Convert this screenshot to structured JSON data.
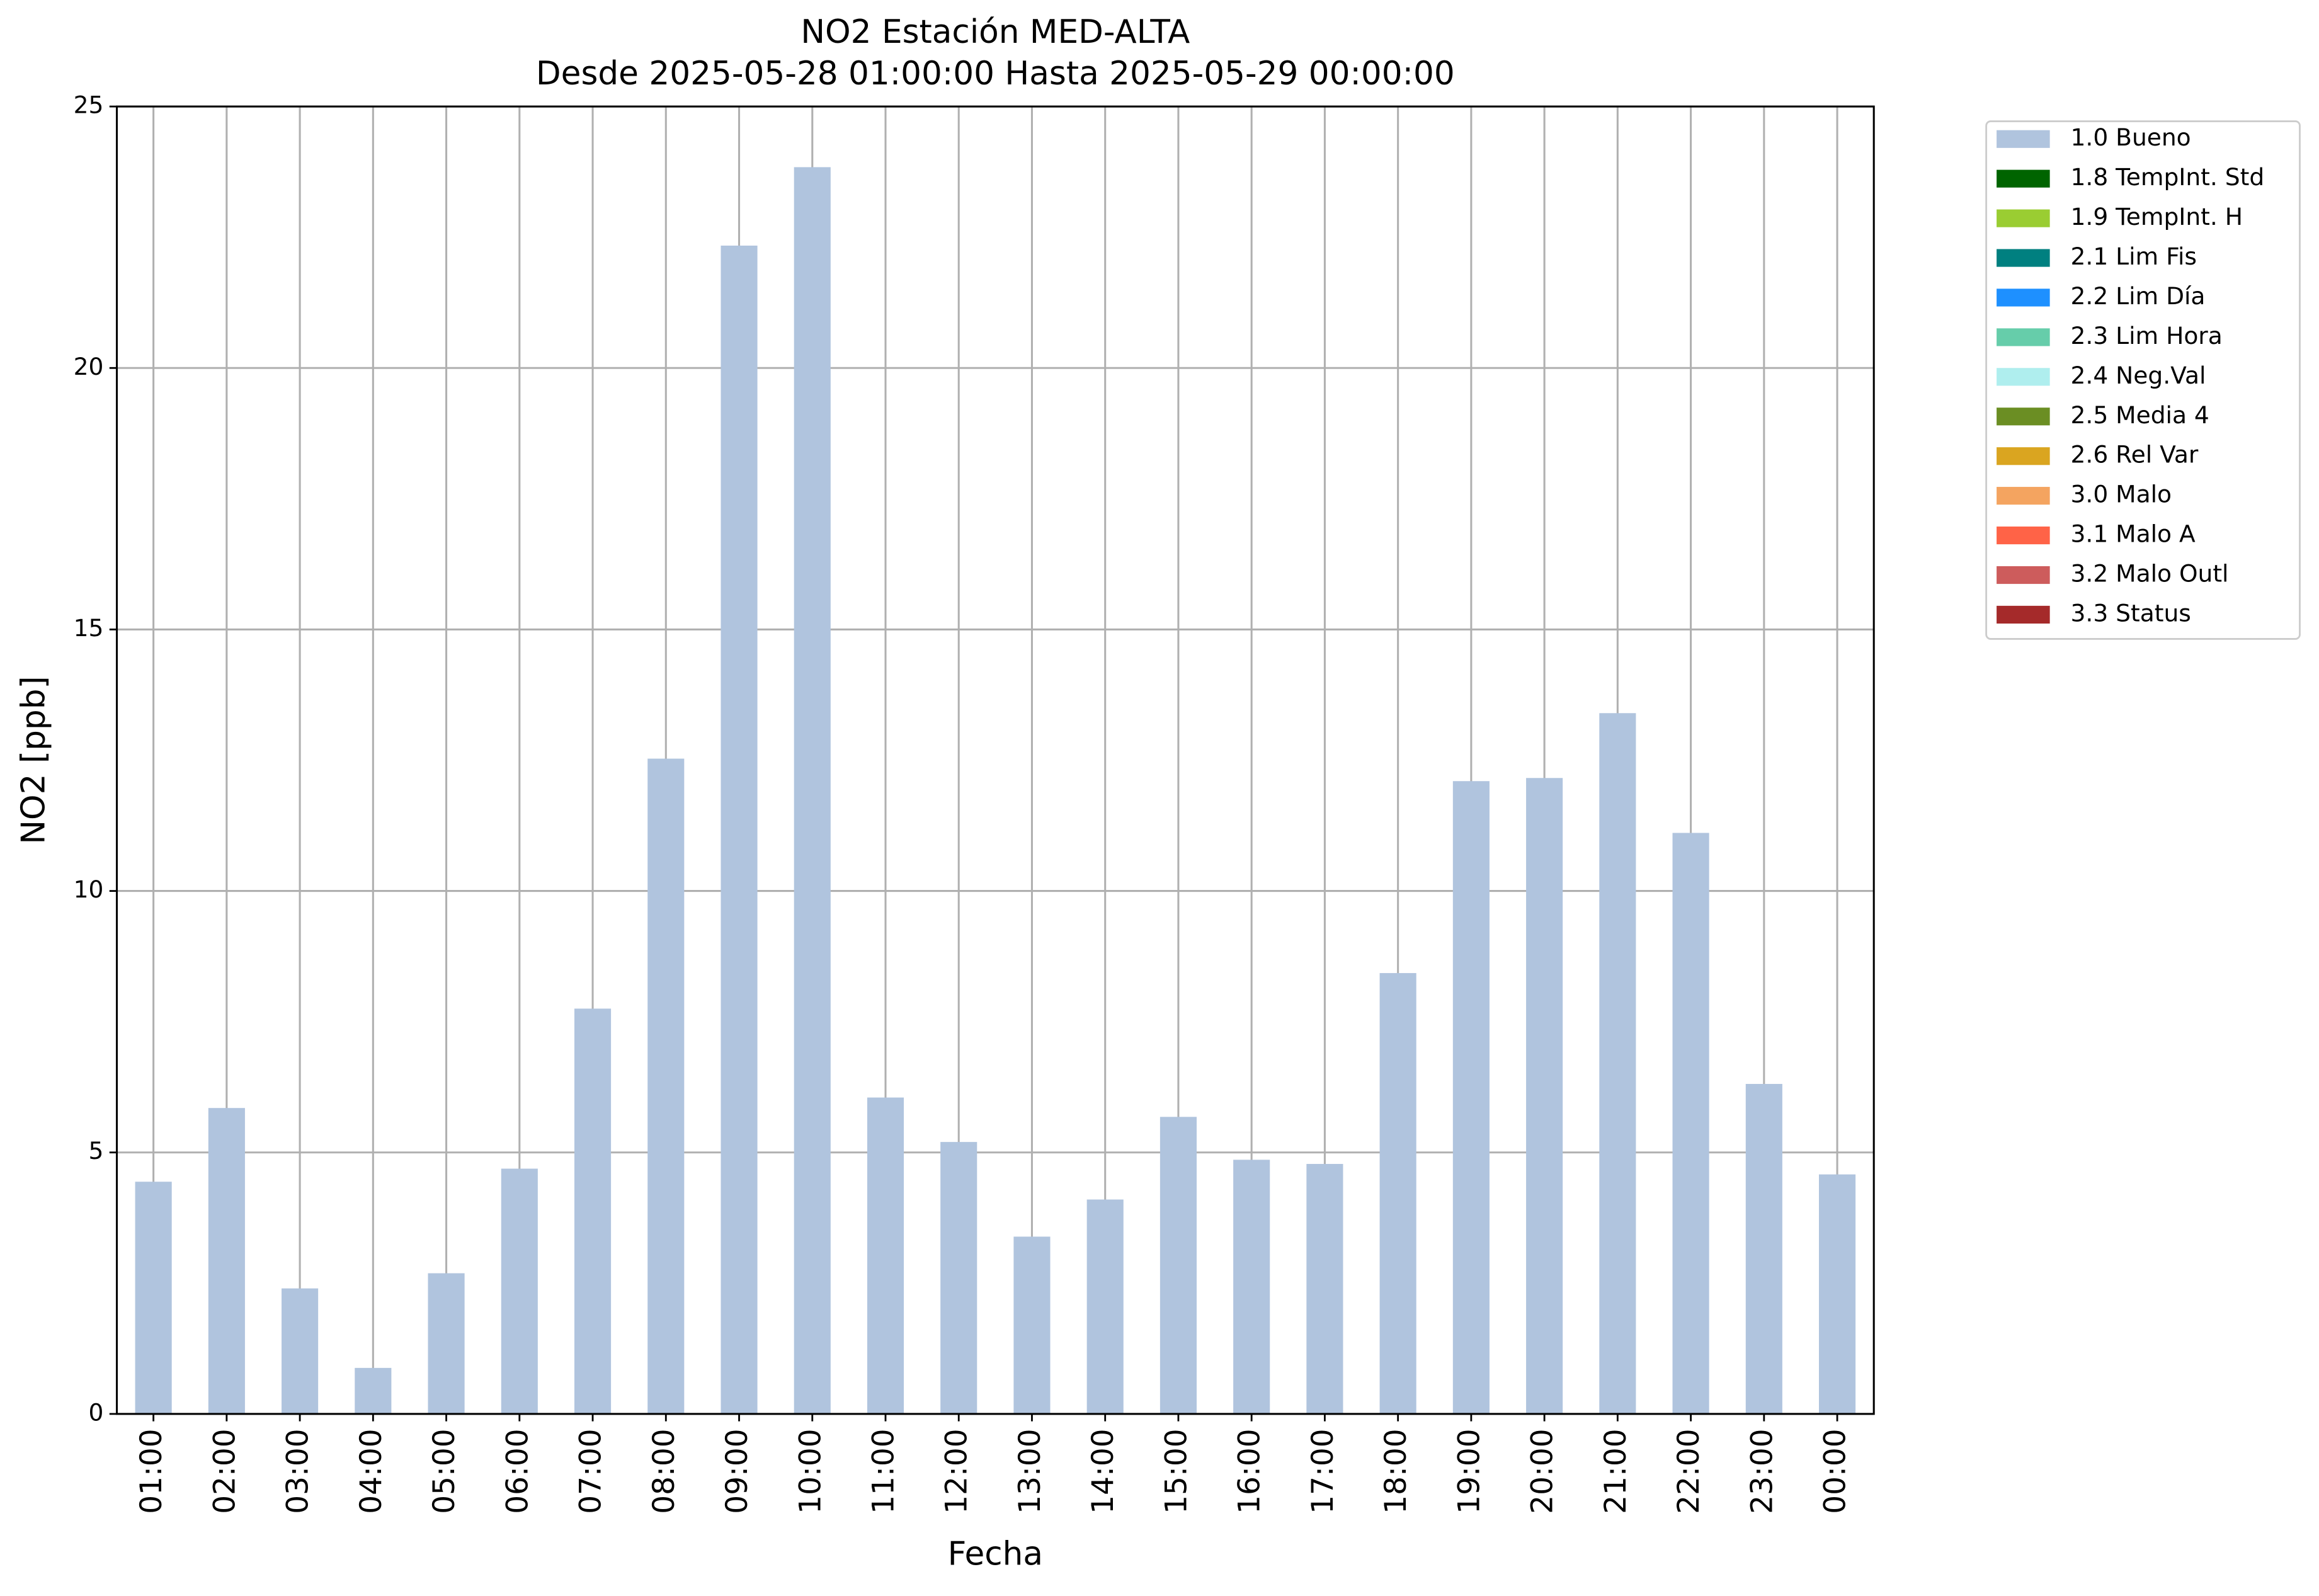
{
  "chart_data": {
    "type": "stacked_bar",
    "title": "NO2 Estación MED-ALTA",
    "subtitle": "Desde 2025-05-28 01:00:00 Hasta 2025-05-29 00:00:00",
    "x_label": "Fecha",
    "y_label": "NO2 [ppb]",
    "categories": [
      "01:00",
      "02:00",
      "03:00",
      "04:00",
      "05:00",
      "06:00",
      "07:00",
      "08:00",
      "09:00",
      "10:00",
      "11:00",
      "12:00",
      "13:00",
      "14:00",
      "15:00",
      "16:00",
      "17:00",
      "18:00",
      "19:00",
      "20:00",
      "21:00",
      "22:00",
      "23:00",
      "00:00"
    ],
    "series": [
      {
        "name": "1.0 Bueno",
        "color": "#b0c4de",
        "values": [
          4.44,
          5.85,
          2.4,
          0.88,
          2.69,
          4.69,
          7.75,
          12.53,
          22.34,
          23.84,
          6.05,
          5.2,
          3.39,
          4.1,
          5.68,
          4.86,
          4.78,
          8.43,
          12.1,
          12.16,
          13.4,
          11.11,
          6.31,
          4.58
        ]
      },
      {
        "name": "1.8 TempInt. Std",
        "color": "#006400",
        "values": [
          0,
          0,
          0,
          0,
          0,
          0,
          0,
          0,
          0,
          0,
          0,
          0,
          0,
          0,
          0,
          0,
          0,
          0,
          0,
          0,
          0,
          0,
          0,
          0
        ]
      },
      {
        "name": "1.9 TempInt. H",
        "color": "#9acd32",
        "values": [
          0,
          0,
          0,
          0,
          0,
          0,
          0,
          0,
          0,
          0,
          0,
          0,
          0,
          0,
          0,
          0,
          0,
          0,
          0,
          0,
          0,
          0,
          0,
          0
        ]
      },
      {
        "name": "2.1 Lim Fis",
        "color": "#008080",
        "values": [
          0,
          0,
          0,
          0,
          0,
          0,
          0,
          0,
          0,
          0,
          0,
          0,
          0,
          0,
          0,
          0,
          0,
          0,
          0,
          0,
          0,
          0,
          0,
          0
        ]
      },
      {
        "name": "2.2 Lim Día",
        "color": "#1e90ff",
        "values": [
          0,
          0,
          0,
          0,
          0,
          0,
          0,
          0,
          0,
          0,
          0,
          0,
          0,
          0,
          0,
          0,
          0,
          0,
          0,
          0,
          0,
          0,
          0,
          0
        ]
      },
      {
        "name": "2.3 Lim Hora",
        "color": "#66cdaa",
        "values": [
          0,
          0,
          0,
          0,
          0,
          0,
          0,
          0,
          0,
          0,
          0,
          0,
          0,
          0,
          0,
          0,
          0,
          0,
          0,
          0,
          0,
          0,
          0,
          0
        ]
      },
      {
        "name": "2.4 Neg.Val",
        "color": "#afeeee",
        "values": [
          0,
          0,
          0,
          0,
          0,
          0,
          0,
          0,
          0,
          0,
          0,
          0,
          0,
          0,
          0,
          0,
          0,
          0,
          0,
          0,
          0,
          0,
          0,
          0
        ]
      },
      {
        "name": "2.5 Media 4",
        "color": "#6b8e23",
        "values": [
          0,
          0,
          0,
          0,
          0,
          0,
          0,
          0,
          0,
          0,
          0,
          0,
          0,
          0,
          0,
          0,
          0,
          0,
          0,
          0,
          0,
          0,
          0,
          0
        ]
      },
      {
        "name": "2.6 Rel Var",
        "color": "#daa520",
        "values": [
          0,
          0,
          0,
          0,
          0,
          0,
          0,
          0,
          0,
          0,
          0,
          0,
          0,
          0,
          0,
          0,
          0,
          0,
          0,
          0,
          0,
          0,
          0,
          0
        ]
      },
      {
        "name": "3.0 Malo",
        "color": "#f4a460",
        "values": [
          0,
          0,
          0,
          0,
          0,
          0,
          0,
          0,
          0,
          0,
          0,
          0,
          0,
          0,
          0,
          0,
          0,
          0,
          0,
          0,
          0,
          0,
          0,
          0
        ]
      },
      {
        "name": "3.1 Malo A",
        "color": "#ff6347",
        "values": [
          0,
          0,
          0,
          0,
          0,
          0,
          0,
          0,
          0,
          0,
          0,
          0,
          0,
          0,
          0,
          0,
          0,
          0,
          0,
          0,
          0,
          0,
          0,
          0
        ]
      },
      {
        "name": "3.2 Malo Outl",
        "color": "#cd5c5c",
        "values": [
          0,
          0,
          0,
          0,
          0,
          0,
          0,
          0,
          0,
          0,
          0,
          0,
          0,
          0,
          0,
          0,
          0,
          0,
          0,
          0,
          0,
          0,
          0,
          0
        ]
      },
      {
        "name": "3.3 Status",
        "color": "#a52a2a",
        "values": [
          0,
          0,
          0,
          0,
          0,
          0,
          0,
          0,
          0,
          0,
          0,
          0,
          0,
          0,
          0,
          0,
          0,
          0,
          0,
          0,
          0,
          0,
          0,
          0
        ]
      }
    ],
    "ylim": [
      0,
      25
    ],
    "yticks": [
      0,
      5,
      10,
      15,
      20,
      25
    ],
    "grid": true,
    "legend": "outside-right"
  }
}
